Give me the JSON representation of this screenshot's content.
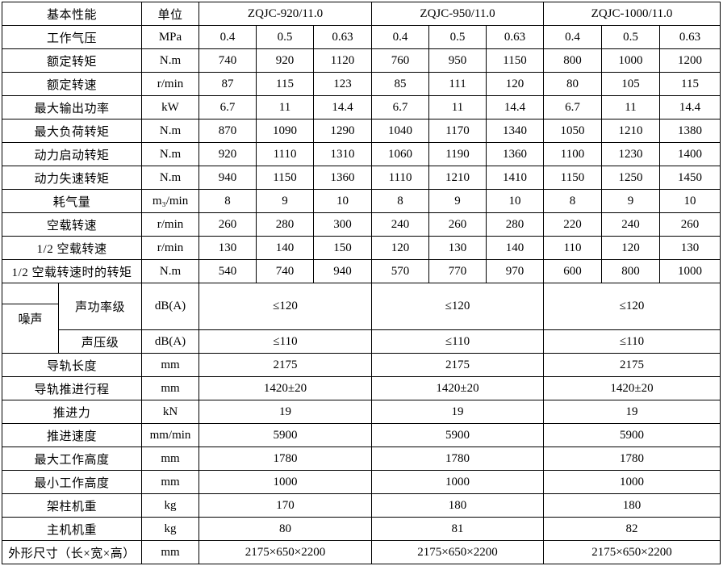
{
  "chart_data": {
    "type": "table",
    "colors": {
      "border": "#000000",
      "background": "#ffffff",
      "text": "#000000"
    },
    "rows": [
      {
        "type": "header",
        "label": "基本性能",
        "unit": "单位",
        "models": [
          "ZQJC-920/11.0",
          "ZQJC-950/11.0",
          "ZQJC-1000/11.0"
        ]
      },
      {
        "type": "v9",
        "label": "工作气压",
        "unit": "MPa",
        "values": [
          "0.4",
          "0.5",
          "0.63",
          "0.4",
          "0.5",
          "0.63",
          "0.4",
          "0.5",
          "0.63"
        ]
      },
      {
        "type": "v9",
        "label": "额定转矩",
        "unit": "N.m",
        "values": [
          "740",
          "920",
          "1120",
          "760",
          "950",
          "1150",
          "800",
          "1000",
          "1200"
        ]
      },
      {
        "type": "v9",
        "label": "额定转速",
        "unit": "r/min",
        "values": [
          "87",
          "115",
          "123",
          "85",
          "111",
          "120",
          "80",
          "105",
          "115"
        ]
      },
      {
        "type": "v9",
        "label": "最大输出功率",
        "unit": "kW",
        "values": [
          "6.7",
          "11",
          "14.4",
          "6.7",
          "11",
          "14.4",
          "6.7",
          "11",
          "14.4"
        ]
      },
      {
        "type": "v9",
        "label": "最大负荷转矩",
        "unit": "N.m",
        "values": [
          "870",
          "1090",
          "1290",
          "1040",
          "1170",
          "1340",
          "1050",
          "1210",
          "1380"
        ]
      },
      {
        "type": "v9",
        "label": "动力启动转矩",
        "unit": "N.m",
        "values": [
          "920",
          "1110",
          "1310",
          "1060",
          "1190",
          "1360",
          "1100",
          "1230",
          "1400"
        ]
      },
      {
        "type": "v9",
        "label": "动力失速转矩",
        "unit": "N.m",
        "values": [
          "940",
          "1150",
          "1360",
          "1110",
          "1210",
          "1410",
          "1150",
          "1250",
          "1450"
        ]
      },
      {
        "type": "v9",
        "label": "耗气量",
        "unit": "m₃/min",
        "values": [
          "8",
          "9",
          "10",
          "8",
          "9",
          "10",
          "8",
          "9",
          "10"
        ]
      },
      {
        "type": "v9",
        "label": "空载转速",
        "unit": "r/min",
        "values": [
          "260",
          "280",
          "300",
          "240",
          "260",
          "280",
          "220",
          "240",
          "260"
        ]
      },
      {
        "type": "v9",
        "label": "1/2 空载转速",
        "unit": "r/min",
        "values": [
          "130",
          "140",
          "150",
          "120",
          "130",
          "140",
          "110",
          "120",
          "130"
        ]
      },
      {
        "type": "v9",
        "label": "1/2 空载转速时的转矩",
        "unit": "N.m",
        "values": [
          "540",
          "740",
          "940",
          "570",
          "770",
          "970",
          "600",
          "800",
          "1000"
        ]
      },
      {
        "type": "noise1",
        "group": "噪声",
        "label": "声功率级",
        "unit": "dB(A)",
        "values": [
          "≤120",
          "≤120",
          "≤120"
        ]
      },
      {
        "type": "noise2",
        "label": "声压级",
        "unit": "dB(A)",
        "values": [
          "≤110",
          "≤110",
          "≤110"
        ]
      },
      {
        "type": "v3",
        "label": "导轨长度",
        "unit": "mm",
        "values": [
          "2175",
          "2175",
          "2175"
        ]
      },
      {
        "type": "v3",
        "label": "导轨推进行程",
        "unit": "mm",
        "values": [
          "1420±20",
          "1420±20",
          "1420±20"
        ]
      },
      {
        "type": "v3",
        "label": "推进力",
        "unit": "kN",
        "values": [
          "19",
          "19",
          "19"
        ]
      },
      {
        "type": "v3",
        "label": "推进速度",
        "unit": "mm/min",
        "values": [
          "5900",
          "5900",
          "5900"
        ]
      },
      {
        "type": "v3",
        "label": "最大工作高度",
        "unit": "mm",
        "values": [
          "1780",
          "1780",
          "1780"
        ]
      },
      {
        "type": "v3",
        "label": "最小工作高度",
        "unit": "mm",
        "values": [
          "1000",
          "1000",
          "1000"
        ]
      },
      {
        "type": "v3",
        "label": "架柱机重",
        "unit": "kg",
        "values": [
          "170",
          "180",
          "180"
        ]
      },
      {
        "type": "v3",
        "label": "主机机重",
        "unit": "kg",
        "values": [
          "80",
          "81",
          "82"
        ]
      },
      {
        "type": "v3",
        "label": "外形尺寸（长×宽×高）",
        "unit": "mm",
        "values": [
          "2175×650×2200",
          "2175×650×2200",
          "2175×650×2200"
        ]
      }
    ]
  }
}
